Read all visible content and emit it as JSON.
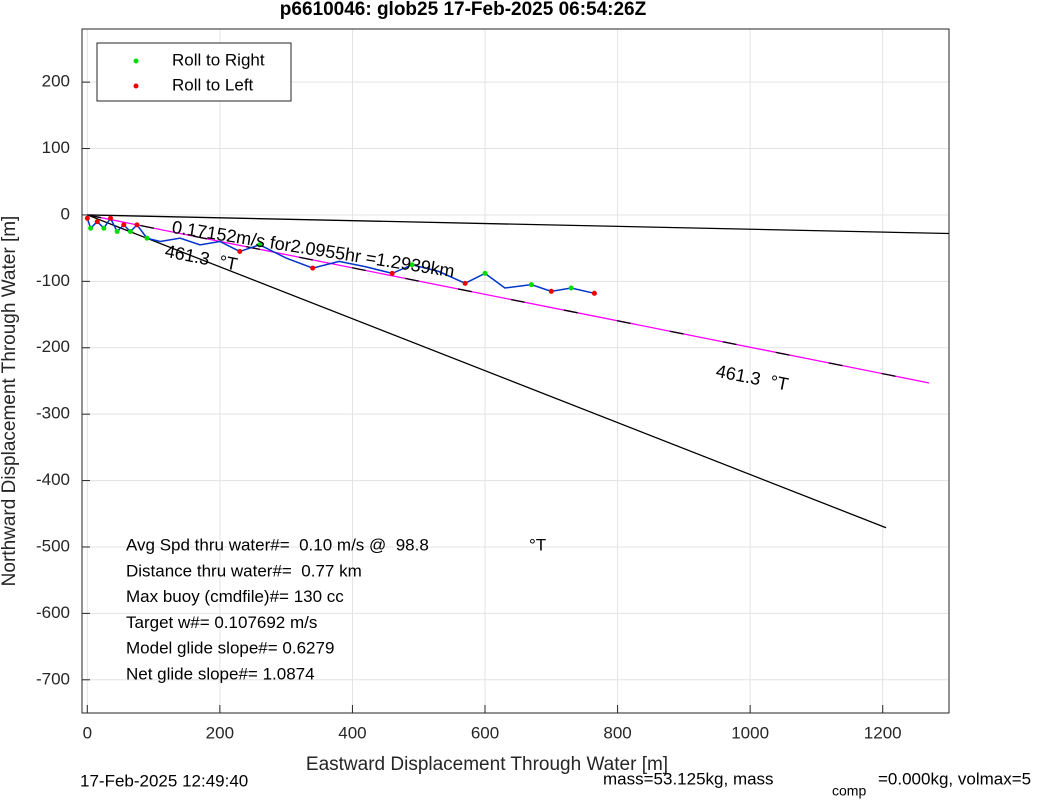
{
  "chart_data": {
    "type": "line",
    "title": "p6610046: glob25 17-Feb-2025 06:54:26Z",
    "x_label": "Eastward Displacement Through Water [m]",
    "y_label": "Northward Displacement Through Water [m]",
    "xlim": [
      -8,
      1300
    ],
    "ylim": [
      -750,
      280
    ],
    "xticks": [
      0,
      200,
      400,
      600,
      800,
      1000,
      1200
    ],
    "yticks": [
      -700,
      -600,
      -500,
      -400,
      -300,
      -200,
      -100,
      0,
      100,
      200
    ],
    "grid": true,
    "legend_position": "upper-left",
    "trajectory": {
      "color": "#0033cc",
      "x": [
        0,
        5,
        15,
        25,
        35,
        45,
        55,
        65,
        75,
        90,
        110,
        140,
        170,
        200,
        230,
        260,
        300,
        340,
        380,
        420,
        460,
        490,
        530,
        570,
        600,
        630,
        670,
        700,
        730,
        765
      ],
      "y": [
        -5,
        -20,
        -10,
        -20,
        -5,
        -25,
        -15,
        -25,
        -15,
        -35,
        -40,
        -35,
        -45,
        -40,
        -55,
        -45,
        -65,
        -80,
        -70,
        -78,
        -88,
        -75,
        -85,
        -103,
        -88,
        -110,
        -105,
        -115,
        -110,
        -118
      ]
    },
    "series": [
      {
        "name": "Roll to Right",
        "color": "#00dd00",
        "x": [
          5,
          25,
          45,
          65,
          90,
          260,
          490,
          600,
          670,
          730
        ],
        "values": [
          -20,
          -20,
          -25,
          -25,
          -35,
          -45,
          -75,
          -88,
          -105,
          -110
        ]
      },
      {
        "name": "Roll to Left",
        "color": "#ee0000",
        "x": [
          0,
          15,
          35,
          55,
          75,
          230,
          340,
          460,
          570,
          700,
          765
        ],
        "values": [
          -5,
          -10,
          -5,
          -15,
          -15,
          -55,
          -80,
          -88,
          -103,
          -115,
          -118
        ]
      }
    ],
    "reference_lines": [
      {
        "color": "#000000",
        "x": [
          0,
          1300
        ],
        "y": [
          0,
          -28
        ]
      },
      {
        "color": "#000000",
        "x": [
          0,
          1205
        ],
        "y": [
          0,
          -471
        ]
      },
      {
        "color": "#ff00ff",
        "x": [
          0,
          1270
        ],
        "y": [
          0,
          -253
        ]
      }
    ],
    "annotations": [
      "0.17152m/s for2.0955hr =1.2939km",
      "461.3  °T",
      "461.3  °T"
    ],
    "info_lines": [
      "Avg Spd thru water#=  0.10 m/s @  98.8",
      "Distance thru water#=  0.77 km",
      "Max buoy (cmdfile)#= 130 cc",
      "Target w#= 0.107692 m/s",
      "Model glide slope#= 0.6279",
      "Net glide slope#= 1.0874"
    ],
    "info_unit": "°T",
    "footer": {
      "date": "17-Feb-2025 12:49:40",
      "mass": "mass=53.125kg, mass",
      "comp": "comp",
      "rest": "=0.000kg, volmax=5"
    }
  }
}
